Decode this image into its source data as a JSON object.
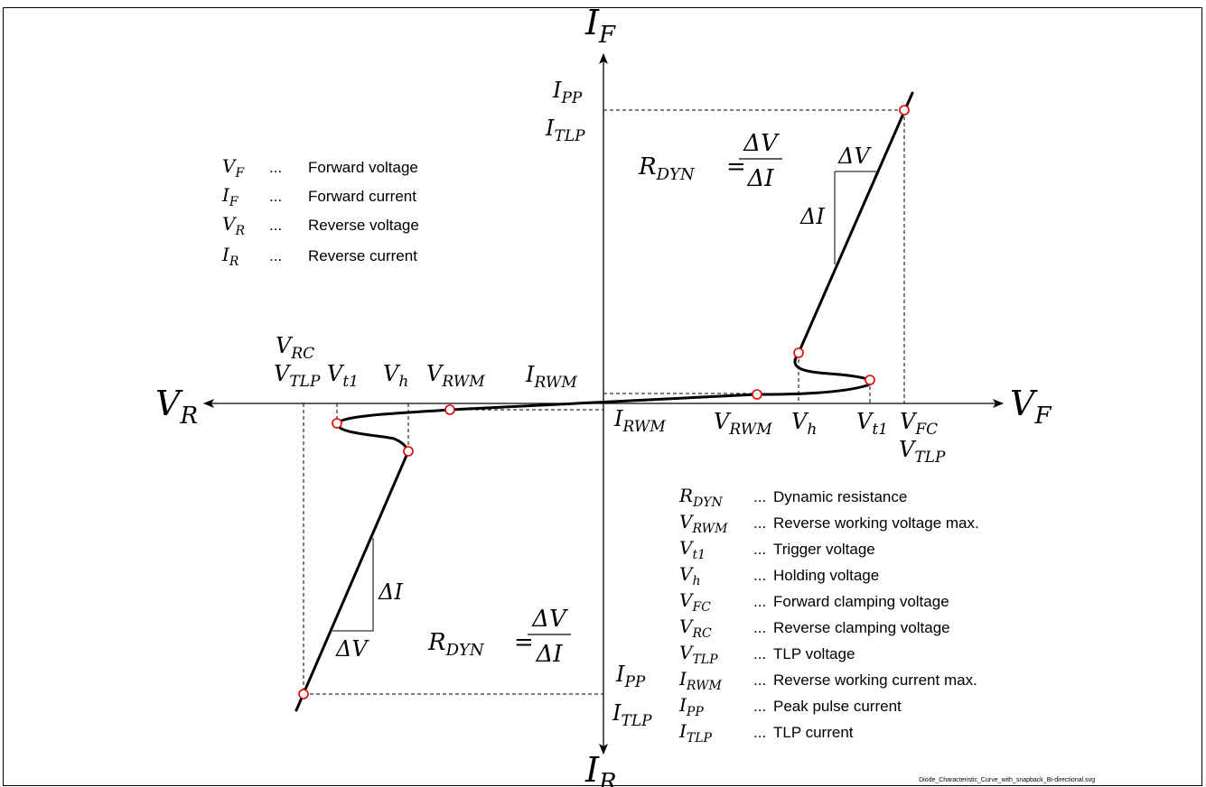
{
  "axes": {
    "forward_current": {
      "main": "I",
      "sub": "F"
    },
    "reverse_current": {
      "main": "I",
      "sub": "R"
    },
    "forward_voltage": {
      "main": "V",
      "sub": "F"
    },
    "reverse_voltage": {
      "main": "V",
      "sub": "R"
    }
  },
  "labels": {
    "ipp_q1": {
      "main": "I",
      "sub": "PP"
    },
    "itlp_q1": {
      "main": "I",
      "sub": "TLP"
    },
    "irwm_above": {
      "main": "I",
      "sub": "RWM"
    },
    "irwm_below": {
      "main": "I",
      "sub": "RWM"
    },
    "vrwm_pos": {
      "main": "V",
      "sub": "RWM"
    },
    "vh_pos": {
      "main": "V",
      "sub": "h"
    },
    "vt1_pos": {
      "main": "V",
      "sub": "t1"
    },
    "vfc_pos": {
      "main": "V",
      "sub": "FC"
    },
    "vtlp_pos": {
      "main": "V",
      "sub": "TLP"
    },
    "vrc_neg": {
      "main": "V",
      "sub": "RC"
    },
    "vtlp_neg": {
      "main": "V",
      "sub": "TLP"
    },
    "vt1_neg": {
      "main": "V",
      "sub": "t1"
    },
    "vh_neg": {
      "main": "V",
      "sub": "h"
    },
    "vrwm_neg": {
      "main": "V",
      "sub": "RWM"
    },
    "ipp_q3": {
      "main": "I",
      "sub": "PP"
    },
    "itlp_q3": {
      "main": "I",
      "sub": "TLP"
    }
  },
  "formulas": {
    "q1": {
      "lhs_main": "R",
      "lhs_sub": "DYN",
      "equals": "=",
      "numerator": "ΔV",
      "denominator": "ΔI"
    },
    "q3": {
      "lhs_main": "R",
      "lhs_sub": "DYN",
      "equals": "=",
      "numerator": "ΔV",
      "denominator": "ΔI"
    }
  },
  "triangles": {
    "q1": {
      "delta_v": "ΔV",
      "delta_i": "ΔI"
    },
    "q3": {
      "delta_v": "ΔV",
      "delta_i": "ΔI"
    }
  },
  "legend_top_left": [
    {
      "main": "V",
      "sub": "F",
      "dots": "...",
      "desc": "Forward voltage"
    },
    {
      "main": "I",
      "sub": "F",
      "dots": "...",
      "desc": "Forward current"
    },
    {
      "main": "V",
      "sub": "R",
      "dots": "...",
      "desc": "Reverse voltage"
    },
    {
      "main": "I",
      "sub": "R",
      "dots": "...",
      "desc": "Reverse current"
    }
  ],
  "legend_bottom_right": [
    {
      "main": "R",
      "sub": "DYN",
      "dots": "...",
      "desc": "Dynamic resistance"
    },
    {
      "main": "V",
      "sub": "RWM",
      "dots": "...",
      "desc": "Reverse working voltage max."
    },
    {
      "main": "V",
      "sub": "t1",
      "dots": "...",
      "desc": "Trigger voltage"
    },
    {
      "main": "V",
      "sub": "h",
      "dots": "...",
      "desc": "Holding voltage"
    },
    {
      "main": "V",
      "sub": "FC",
      "dots": "...",
      "desc": "Forward clamping voltage"
    },
    {
      "main": "V",
      "sub": "RC",
      "dots": "...",
      "desc": "Reverse clamping voltage"
    },
    {
      "main": "V",
      "sub": "TLP",
      "dots": "...",
      "desc": "TLP voltage"
    },
    {
      "main": "I",
      "sub": "RWM",
      "dots": "...",
      "desc": "Reverse working current max."
    },
    {
      "main": "I",
      "sub": "PP",
      "dots": "...",
      "desc": "Peak pulse current"
    },
    {
      "main": "I",
      "sub": "TLP",
      "dots": "...",
      "desc": "TLP current"
    }
  ],
  "file_caption": "Diode_Characteristic_Curve_with_snapback_Bi-directional.svg",
  "colors": {
    "curve": "#000000",
    "marker_stroke": "#e00000",
    "marker_fill": "#ffffff",
    "frame": "#000000"
  }
}
